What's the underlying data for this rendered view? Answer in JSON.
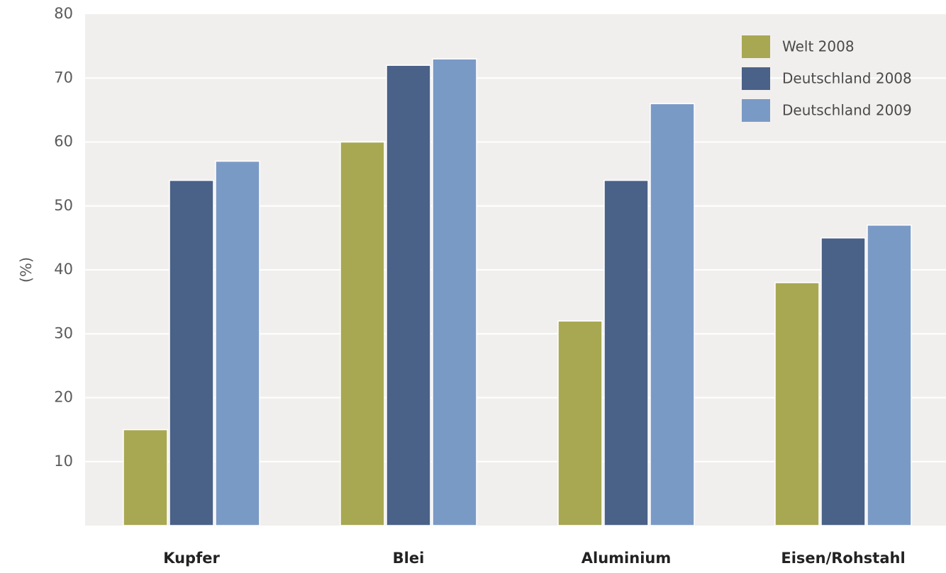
{
  "chart_data": {
    "type": "bar",
    "title": "",
    "xlabel": "",
    "ylabel": "(%)",
    "ylim": [
      0,
      80
    ],
    "yticks": [
      10,
      20,
      30,
      40,
      50,
      60,
      70,
      80
    ],
    "grid": true,
    "legend_position": "top-right",
    "categories": [
      "Kupfer",
      "Blei",
      "Aluminium",
      "Eisen/Rohstahl"
    ],
    "series": [
      {
        "name": "Welt 2008",
        "color": "#a8a852",
        "values": [
          15,
          60,
          32,
          38
        ]
      },
      {
        "name": "Deutschland 2008",
        "color": "#4a6188",
        "values": [
          54,
          72,
          54,
          45
        ]
      },
      {
        "name": "Deutschland 2009",
        "color": "#7a9ac6",
        "values": [
          57,
          73,
          66,
          47
        ]
      }
    ]
  }
}
